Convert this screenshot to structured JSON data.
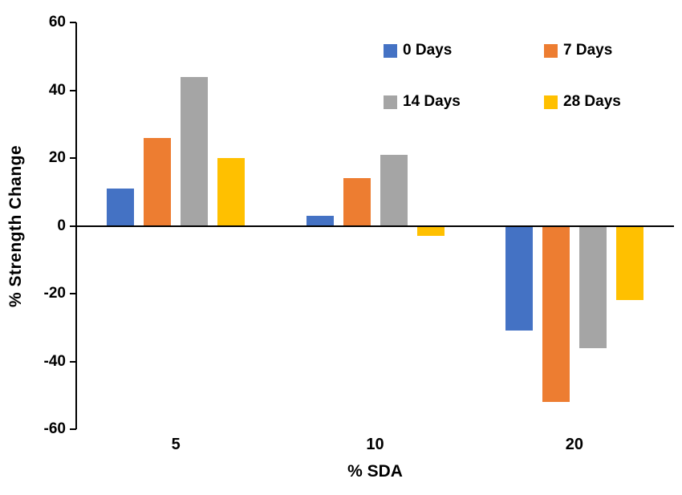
{
  "chart_data": {
    "type": "bar",
    "title": "",
    "xlabel": "% SDA",
    "ylabel": "% Strength Change",
    "ylim": [
      -60,
      60
    ],
    "ytick_step": 20,
    "yticks": [
      -60,
      -40,
      -20,
      0,
      20,
      40,
      60
    ],
    "grid": false,
    "legend_position": "inside-top-right",
    "categories": [
      "5",
      "10",
      "20"
    ],
    "series": [
      {
        "name": "0 Days",
        "color": "#4472C4",
        "values": [
          11,
          3,
          -31
        ]
      },
      {
        "name": "7 Days",
        "color": "#ED7D31",
        "values": [
          26,
          14,
          -52
        ]
      },
      {
        "name": "14 Days",
        "color": "#A5A5A5",
        "values": [
          44,
          21,
          -36
        ]
      },
      {
        "name": "28 Days",
        "color": "#FFC000",
        "values": [
          20,
          -3,
          -22
        ]
      }
    ]
  }
}
